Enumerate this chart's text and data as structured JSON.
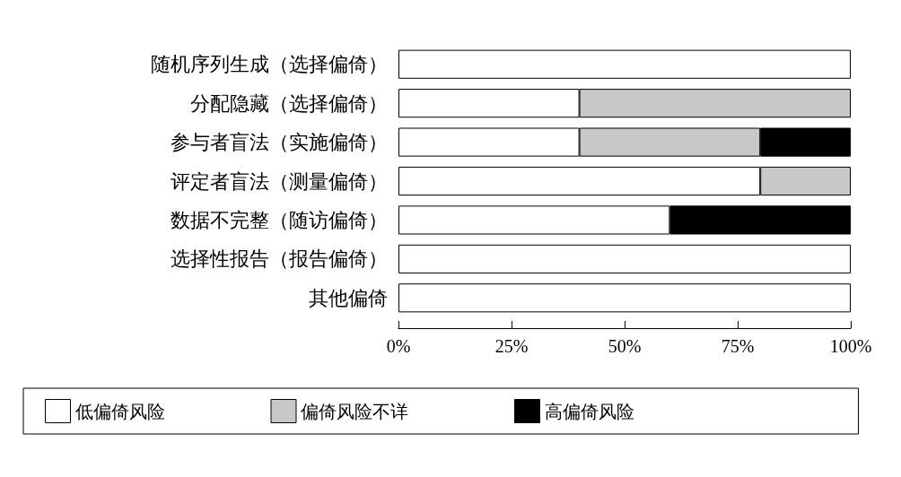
{
  "chart_data": {
    "type": "bar",
    "orientation": "horizontal",
    "stacked": true,
    "categories": [
      "随机序列生成（选择偏倚）",
      "分配隐藏（选择偏倚）",
      "参与者盲法（实施偏倚）",
      "评定者盲法（测量偏倚）",
      "数据不完整（随访偏倚）",
      "选择性报告（报告偏倚）",
      "其他偏倚"
    ],
    "series": [
      {
        "name": "低偏倚风险",
        "color": "#ffffff",
        "values": [
          100,
          40,
          40,
          80,
          60,
          100,
          100
        ]
      },
      {
        "name": "偏倚风险不详",
        "color": "#c8c8c8",
        "values": [
          0,
          60,
          40,
          20,
          0,
          0,
          0
        ]
      },
      {
        "name": "高偏倚风险",
        "color": "#000000",
        "values": [
          0,
          0,
          20,
          0,
          40,
          0,
          0
        ]
      }
    ],
    "xlim": [
      0,
      100
    ],
    "xticks": [
      {
        "value": 0,
        "label": "0%"
      },
      {
        "value": 25,
        "label": "25%"
      },
      {
        "value": 50,
        "label": "50%"
      },
      {
        "value": 75,
        "label": "75%"
      },
      {
        "value": 100,
        "label": "100%"
      }
    ],
    "grid": false,
    "legend": "bottom"
  }
}
